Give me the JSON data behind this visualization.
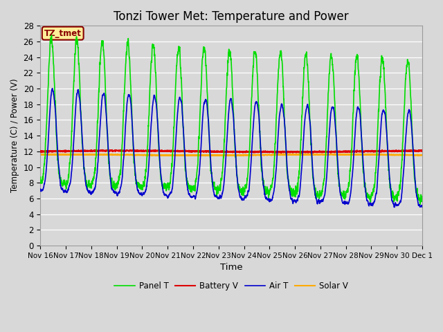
{
  "title": "Tonzi Tower Met: Temperature and Power",
  "xlabel": "Time",
  "ylabel": "Temperature (C) / Power (V)",
  "ylim": [
    0,
    28
  ],
  "yticks": [
    0,
    2,
    4,
    6,
    8,
    10,
    12,
    14,
    16,
    18,
    20,
    22,
    24,
    26,
    28
  ],
  "xtick_labels": [
    "Nov 16",
    "Nov 17",
    "Nov 18",
    "Nov 19",
    "Nov 20",
    "Nov 21",
    "Nov 22",
    "Nov 23",
    "Nov 24",
    "Nov 25",
    "Nov 26",
    "Nov 27",
    "Nov 28",
    "Nov 29",
    "Nov 30",
    "Dec 1"
  ],
  "background_color": "#d8d8d8",
  "plot_bg_color": "#d8d8d8",
  "grid_color": "#ffffff",
  "legend_labels": [
    "Panel T",
    "Battery V",
    "Air T",
    "Solar V"
  ],
  "annotation_text": "TZ_tmet",
  "annotation_color": "#880000",
  "annotation_bg": "#ffee99",
  "panel_t_color": "#00dd00",
  "battery_v_color": "#dd0000",
  "air_t_color": "#0000cc",
  "solar_v_color": "#ffaa00",
  "line_width": 1.2,
  "title_fontsize": 12
}
